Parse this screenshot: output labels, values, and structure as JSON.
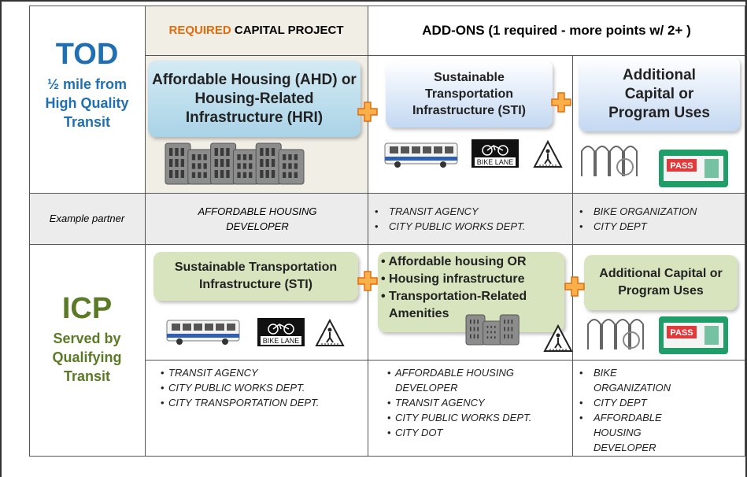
{
  "header": {
    "required_prefix": "REQUIRED",
    "required_rest": "CAPITAL PROJECT",
    "addons": "ADD-ONS (1 required - more points w/ 2+ )"
  },
  "tod": {
    "title": "TOD",
    "subtitle": "½ mile from High Quality Transit",
    "required_box": "Affordable Housing (AHD) or Housing-Related Infrastructure (HRI)",
    "addon_box": "Sustainable Transportation Infrastructure (STI)",
    "additional_box": "Additional Capital or Program Uses"
  },
  "example_partner": {
    "label": "Example partner",
    "required": "AFFORDABLE HOUSING DEVELOPER",
    "addon": [
      "TRANSIT AGENCY",
      "CITY PUBLIC WORKS DEPT."
    ],
    "additional": [
      "BIKE ORGANIZATION",
      "CITY DEPT"
    ]
  },
  "icp": {
    "title": "ICP",
    "subtitle": "Served by Qualifying Transit",
    "required_box": "Sustainable Transportation Infrastructure (STI)",
    "addon_box": [
      "Affordable housing OR",
      "Housing infrastructure",
      "Transportation-Related Amenities"
    ],
    "additional_box": "Additional Capital or Program Uses"
  },
  "icp_partners": {
    "required": [
      "TRANSIT AGENCY",
      "CITY PUBLIC WORKS DEPT.",
      "CITY TRANSPORTATION DEPT."
    ],
    "addon": [
      "AFFORDABLE HOUSING DEVELOPER",
      "TRANSIT AGENCY",
      "CITY PUBLIC WORKS DEPT.",
      "CITY DOT"
    ],
    "additional": [
      "BIKE ORGANIZATION",
      "CITY DEPT",
      "AFFORDABLE HOUSING DEVELOPER"
    ]
  },
  "icons": {
    "bike_lane": "BIKE LANE",
    "pass": "PASS"
  }
}
